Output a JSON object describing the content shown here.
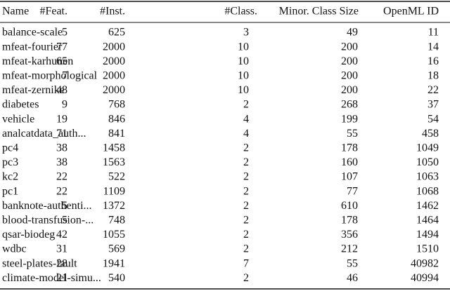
{
  "table": {
    "header": [
      "Name",
      "#Feat.",
      "#Inst.",
      "#Class.",
      "Minor. Class Size",
      "OpenML ID"
    ],
    "rows": [
      [
        "balance-scale",
        5,
        625,
        3,
        49,
        11
      ],
      [
        "mfeat-fourier",
        77,
        2000,
        10,
        200,
        14
      ],
      [
        "mfeat-karhunen",
        65,
        2000,
        10,
        200,
        16
      ],
      [
        "mfeat-morphological",
        7,
        2000,
        10,
        200,
        18
      ],
      [
        "mfeat-zernike",
        48,
        2000,
        10,
        200,
        22
      ],
      [
        "diabetes",
        9,
        768,
        2,
        268,
        37
      ],
      [
        "vehicle",
        19,
        846,
        4,
        199,
        54
      ],
      [
        "analcatdata_auth...",
        71,
        841,
        4,
        55,
        458
      ],
      [
        "pc4",
        38,
        1458,
        2,
        178,
        1049
      ],
      [
        "pc3",
        38,
        1563,
        2,
        160,
        1050
      ],
      [
        "kc2",
        22,
        522,
        2,
        107,
        1063
      ],
      [
        "pc1",
        22,
        1109,
        2,
        77,
        1068
      ],
      [
        "banknote-authenti...",
        5,
        1372,
        2,
        610,
        1462
      ],
      [
        "blood-transfusion-...",
        5,
        748,
        2,
        178,
        1464
      ],
      [
        "qsar-biodeg",
        42,
        1055,
        2,
        356,
        1494
      ],
      [
        "wdbc",
        31,
        569,
        2,
        212,
        1510
      ],
      [
        "steel-plates-fault",
        28,
        1941,
        7,
        55,
        40982
      ],
      [
        "climate-model-simu...",
        21,
        540,
        2,
        46,
        40994
      ]
    ]
  }
}
